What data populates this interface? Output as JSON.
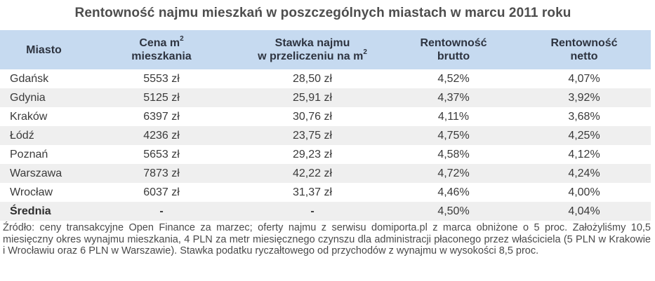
{
  "title": "Rentowność najmu mieszkań w poszczególnych miastach w marcu 2011 roku",
  "table": {
    "headers": [
      {
        "line1": "Miasto",
        "line2": "",
        "sup": ""
      },
      {
        "line1": "Cena m",
        "sup": "2",
        "line2": "mieszkania"
      },
      {
        "line1": "Stawka najmu",
        "line2": "w przeliczeniu na m",
        "sup": "2"
      },
      {
        "line1": "Rentowność",
        "line2": "brutto",
        "sup": ""
      },
      {
        "line1": "Rentowność",
        "line2": "netto",
        "sup": ""
      }
    ],
    "rows": [
      {
        "city": "Gdańsk",
        "price": "5553 zł",
        "rent": "28,50 zł",
        "gross": "4,52%",
        "net": "4,07%"
      },
      {
        "city": "Gdynia",
        "price": "5125 zł",
        "rent": "25,91 zł",
        "gross": "4,37%",
        "net": "3,92%"
      },
      {
        "city": "Kraków",
        "price": "6397 zł",
        "rent": "30,76 zł",
        "gross": "4,11%",
        "net": "3,68%"
      },
      {
        "city": "Łódź",
        "price": "4236 zł",
        "rent": "23,75 zł",
        "gross": "4,75%",
        "net": "4,25%"
      },
      {
        "city": "Poznań",
        "price": "5653 zł",
        "rent": "29,23 zł",
        "gross": "4,58%",
        "net": "4,12%"
      },
      {
        "city": "Warszawa",
        "price": "7873 zł",
        "rent": "42,22 zł",
        "gross": "4,72%",
        "net": "4,24%"
      },
      {
        "city": "Wrocław",
        "price": "6037 zł",
        "rent": "31,37 zł",
        "gross": "4,46%",
        "net": "4,00%"
      }
    ],
    "average": {
      "city": "Średnia",
      "price": "-",
      "rent": "-",
      "gross": "4,50%",
      "net": "4,04%"
    }
  },
  "footnote": "Źródło: ceny transakcyjne Open Finance za marzec; oferty najmu z serwisu domiporta.pl z marca obniżone o 5 proc. Założyliśmy 10,5 miesięczny okres wynajmu mieszkania, 4 PLN za metr miesięcznego czynszu dla administracji płaconego przez właściciela (5 PLN w Krakowie i Wrocławiu oraz 6 PLN w Warszawie). Stawka podatku ryczałtowego od przychodów z wynajmu w wysokości 8,5 proc.",
  "colors": {
    "header_bg": "#c6daf0",
    "row_alt_bg": "#efefef",
    "title_text": "#4d4d4d",
    "header_text": "#2e3440"
  }
}
